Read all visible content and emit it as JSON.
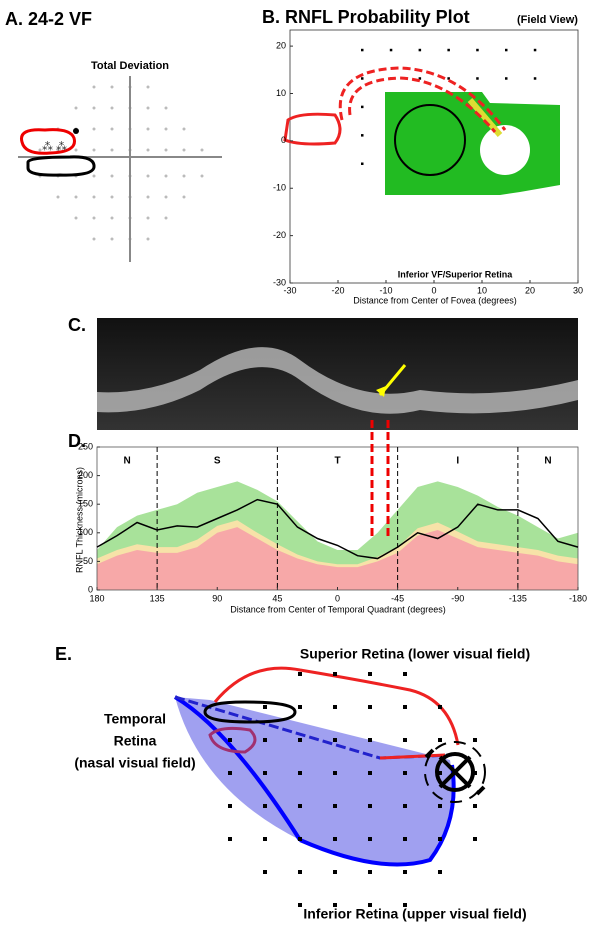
{
  "panel_a": {
    "label": "A. 24-2 VF",
    "title": "Total Deviation"
  },
  "panel_b": {
    "label": "B. RNFL Probability Plot",
    "sublabel": "(Field View)",
    "chart_data": {
      "type": "scatter",
      "annotation": "Inferior VF/Superior Retina",
      "x_label": "Distance from Center of Fovea (degrees)",
      "xlim": [
        -30,
        30
      ],
      "ylim": [
        -30,
        23.4
      ],
      "xticks": [
        -30,
        -20,
        -10,
        0,
        10,
        20,
        30
      ],
      "yticks": [
        -30,
        -20,
        -10,
        0,
        10,
        20
      ]
    }
  },
  "panel_c": {
    "label": "C."
  },
  "panel_d": {
    "label": "D.",
    "chart_data": {
      "type": "line",
      "y_label": "RNFL Thickness (microns)",
      "x_label": "Distance from Center of Temporal Quadrant (degrees)",
      "xlim": [
        180,
        -180
      ],
      "ylim": [
        0,
        250
      ],
      "xticks": [
        180,
        135,
        90,
        45,
        0,
        -45,
        -90,
        -135,
        -180
      ],
      "yticks": [
        0,
        50,
        100,
        150,
        200,
        250
      ],
      "dividers": [
        135,
        45,
        -45,
        -135
      ],
      "sectors": [
        "N",
        "S",
        "T",
        "I",
        "N"
      ],
      "x": [
        180,
        165,
        150,
        135,
        120,
        105,
        90,
        75,
        60,
        45,
        30,
        15,
        0,
        -15,
        -30,
        -45,
        -60,
        -75,
        -90,
        -105,
        -120,
        -135,
        -150,
        -165,
        -180
      ],
      "areas": [
        {
          "color": "#a8e29a",
          "values": [
            70,
            110,
            130,
            140,
            150,
            170,
            180,
            190,
            175,
            155,
            120,
            85,
            70,
            70,
            100,
            140,
            180,
            190,
            180,
            165,
            145,
            130,
            110,
            90,
            100
          ]
        },
        {
          "color": "#f7e2a8",
          "values": [
            55,
            70,
            80,
            75,
            75,
            88,
            112,
            122,
            100,
            80,
            62,
            50,
            45,
            45,
            58,
            75,
            108,
            118,
            102,
            85,
            80,
            75,
            70,
            60,
            55
          ]
        },
        {
          "color": "#f7a8a8",
          "values": [
            45,
            60,
            70,
            65,
            65,
            75,
            100,
            110,
            90,
            70,
            55,
            45,
            40,
            40,
            50,
            65,
            95,
            105,
            90,
            75,
            70,
            65,
            60,
            50,
            45
          ]
        }
      ],
      "series": [
        {
          "color": "#000000",
          "values": [
            75,
            95,
            118,
            105,
            112,
            110,
            125,
            140,
            158,
            150,
            110,
            90,
            78,
            60,
            55,
            75,
            100,
            90,
            110,
            150,
            140,
            140,
            125,
            85,
            75
          ]
        }
      ]
    }
  },
  "panel_e": {
    "label": "E.",
    "superior": "Superior Retina (lower visual field)",
    "temporal": [
      "Temporal",
      "Retina",
      "(nasal visual field)"
    ],
    "inferior": "Inferior Retina (upper visual field)"
  }
}
